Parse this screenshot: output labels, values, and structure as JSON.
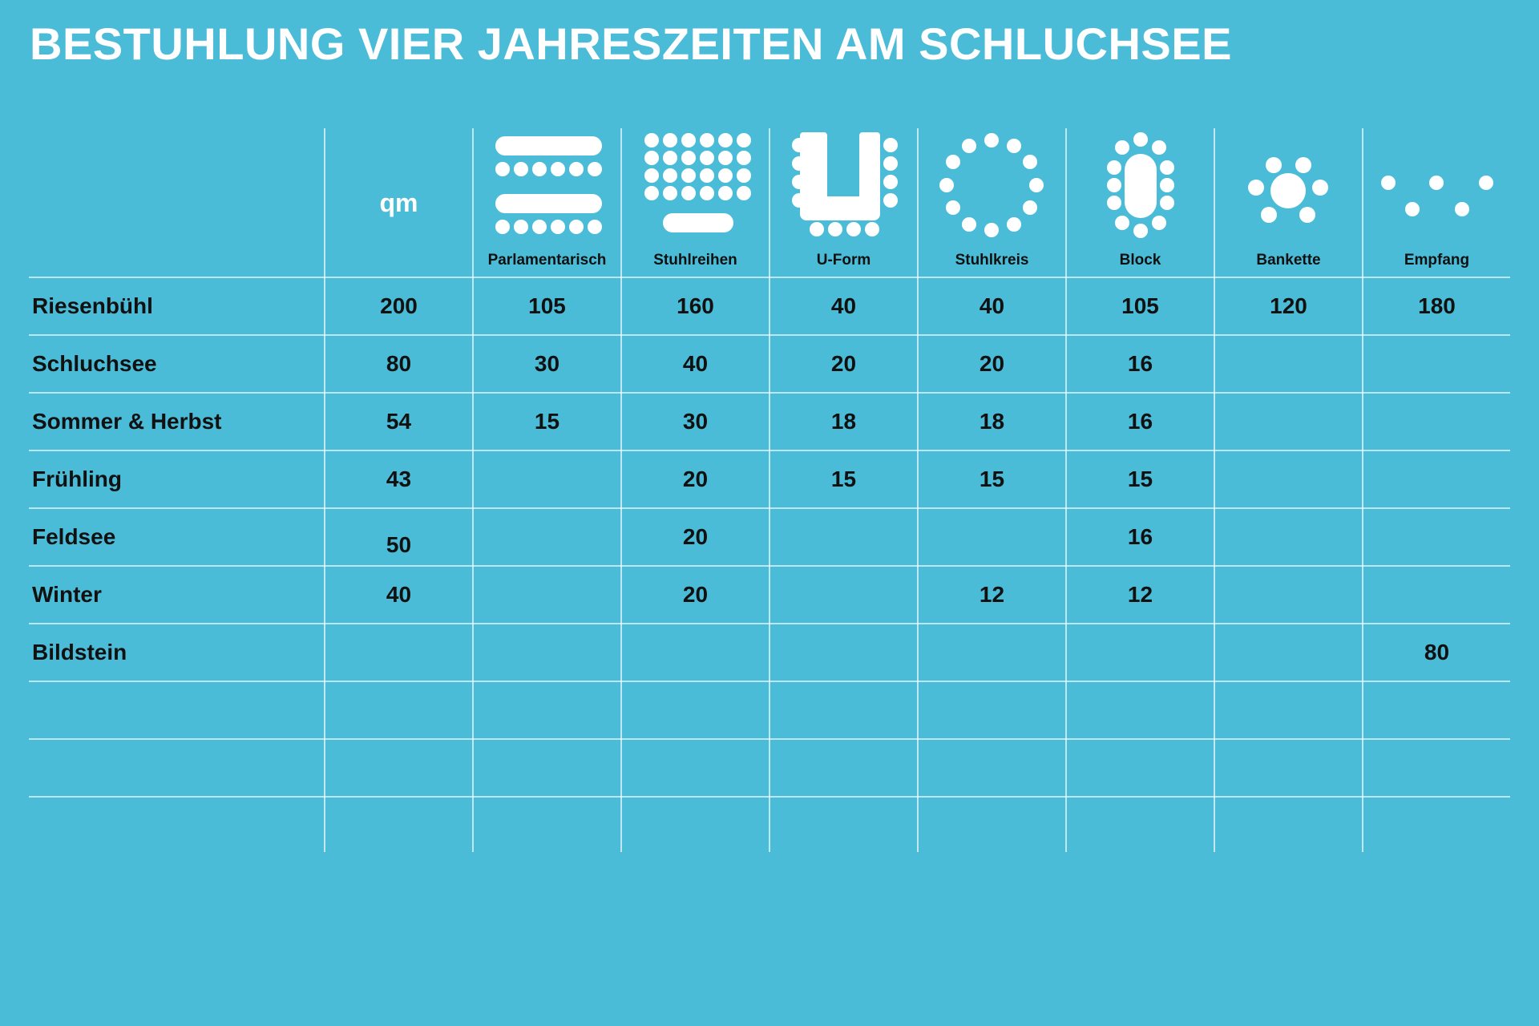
{
  "title": "BESTUHLUNG VIER JAHRESZEITEN AM SCHLUCHSEE",
  "columns": {
    "qm": "qm",
    "parlamentarisch": "Parlamentarisch",
    "stuhlreihen": "Stuhlreihen",
    "uform": "U-Form",
    "stuhlkreis": "Stuhlkreis",
    "block": "Block",
    "bankette": "Bankette",
    "empfang": "Empfang"
  },
  "icons": [
    "parlamentarisch-icon",
    "stuhlreihen-icon",
    "u-form-icon",
    "stuhlkreis-icon",
    "block-icon",
    "bankette-icon",
    "empfang-icon"
  ],
  "rows": [
    {
      "name": "Riesenbühl",
      "values": [
        "200",
        "105",
        "160",
        "40",
        "40",
        "105",
        "120",
        "180"
      ]
    },
    {
      "name": "Schluchsee",
      "values": [
        "80",
        "30",
        "40",
        "20",
        "20",
        "16",
        "",
        ""
      ]
    },
    {
      "name": "Sommer & Herbst",
      "values": [
        "54",
        "15",
        "30",
        "18",
        "18",
        "16",
        "",
        ""
      ]
    },
    {
      "name": "Frühling",
      "values": [
        "43",
        "",
        "20",
        "15",
        "15",
        "15",
        "",
        ""
      ]
    },
    {
      "name": "Feldsee",
      "values": [
        "50",
        "",
        "20",
        "",
        "",
        "16",
        "",
        ""
      ]
    },
    {
      "name": "Winter",
      "values": [
        "40",
        "",
        "20",
        "",
        "12",
        "12",
        "",
        ""
      ]
    },
    {
      "name": "Bildstein",
      "values": [
        "",
        "",
        "",
        "",
        "",
        "",
        "",
        "80"
      ]
    },
    {
      "name": "",
      "values": [
        "",
        "",
        "",
        "",
        "",
        "",
        "",
        ""
      ]
    },
    {
      "name": "",
      "values": [
        "",
        "",
        "",
        "",
        "",
        "",
        "",
        ""
      ]
    },
    {
      "name": "",
      "values": [
        "",
        "",
        "",
        "",
        "",
        "",
        "",
        ""
      ]
    }
  ],
  "colors": {
    "background": "#4bbcd8",
    "lines": "#ffffff",
    "text": "#111111"
  }
}
